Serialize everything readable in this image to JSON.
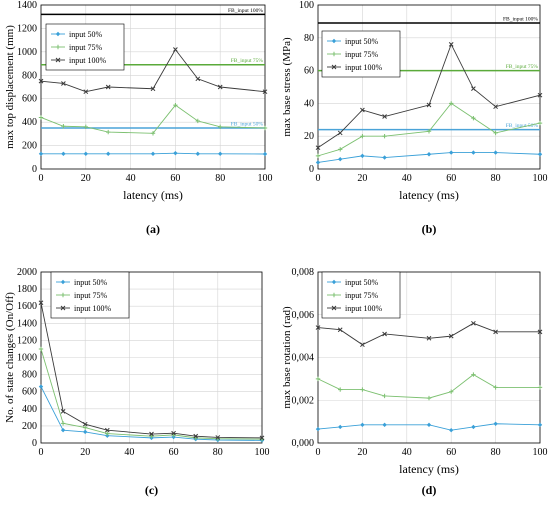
{
  "chart_data": [
    {
      "panel_label": "(a)",
      "type": "line",
      "xlabel": "latency (ms)",
      "ylabel": "max top displacement (mm)",
      "xlim": [
        0,
        100
      ],
      "ylim": [
        0,
        1400
      ],
      "xticks": [
        "0",
        "20",
        "40",
        "60",
        "80",
        "100"
      ],
      "yticks": [
        "0",
        "200",
        "400",
        "600",
        "800",
        "1000",
        "1200",
        "1400"
      ],
      "x": [
        0,
        10,
        20,
        30,
        50,
        60,
        70,
        80,
        100
      ],
      "series": [
        {
          "name": "input 50%",
          "values": [
            130,
            130,
            130,
            130,
            130,
            135,
            130,
            130,
            128
          ]
        },
        {
          "name": "input 75%",
          "values": [
            440,
            365,
            360,
            315,
            305,
            545,
            410,
            360,
            350
          ]
        },
        {
          "name": "input 100%",
          "values": [
            750,
            730,
            660,
            700,
            685,
            1020,
            770,
            700,
            660
          ]
        }
      ],
      "reference_lines": [
        {
          "label": "FB_input 100%",
          "value": 1320
        },
        {
          "label": "FB_input 75%",
          "value": 890
        },
        {
          "label": "FB_input 50%",
          "value": 350
        }
      ],
      "legend_position": "top-left"
    },
    {
      "panel_label": "(b)",
      "type": "line",
      "xlabel": "latency (ms)",
      "ylabel": "max base stress (MPa)",
      "xlim": [
        0,
        100
      ],
      "ylim": [
        0,
        100
      ],
      "xticks": [
        "0",
        "20",
        "40",
        "60",
        "80",
        "100"
      ],
      "yticks": [
        "0",
        "20",
        "40",
        "60",
        "80",
        "100"
      ],
      "x": [
        0,
        10,
        20,
        30,
        50,
        60,
        70,
        80,
        100
      ],
      "series": [
        {
          "name": "input 50%",
          "values": [
            4,
            6,
            8,
            7,
            9,
            10,
            10,
            10,
            9
          ]
        },
        {
          "name": "input 75%",
          "values": [
            8,
            12,
            20,
            20,
            23,
            40,
            31,
            22,
            28
          ]
        },
        {
          "name": "input 100%",
          "values": [
            13,
            22,
            36,
            32,
            39,
            76,
            49,
            38,
            45
          ]
        }
      ],
      "reference_lines": [
        {
          "label": "FB_input 100%",
          "value": 89
        },
        {
          "label": "FB_input 75%",
          "value": 60
        },
        {
          "label": "FB_input 50%",
          "value": 24
        }
      ],
      "legend_position": "top-left"
    },
    {
      "panel_label": "(c)",
      "type": "line",
      "xlabel": "",
      "ylabel": "No. of state changes (On/Off)",
      "xlim": [
        0,
        100
      ],
      "ylim": [
        0,
        2000
      ],
      "xticks": [
        "0",
        "20",
        "40",
        "60",
        "80",
        "100"
      ],
      "yticks": [
        "0",
        "200",
        "400",
        "600",
        "800",
        "1000",
        "1200",
        "1400",
        "1600",
        "1800",
        "2000"
      ],
      "x": [
        0,
        10,
        20,
        30,
        50,
        60,
        70,
        80,
        100
      ],
      "series": [
        {
          "name": "input 50%",
          "values": [
            660,
            150,
            130,
            85,
            60,
            70,
            45,
            35,
            30
          ]
        },
        {
          "name": "input 75%",
          "values": [
            1100,
            230,
            180,
            110,
            80,
            95,
            60,
            50,
            45
          ]
        },
        {
          "name": "input 100%",
          "values": [
            1640,
            370,
            220,
            150,
            105,
            115,
            80,
            65,
            60
          ]
        }
      ],
      "legend_position": "top-right"
    },
    {
      "panel_label": "(d)",
      "type": "line",
      "xlabel": "latency (ms)",
      "ylabel": "max base rotation (rad)",
      "xlim": [
        0,
        100
      ],
      "ylim": [
        0,
        0.008
      ],
      "xticks": [
        "0",
        "20",
        "40",
        "60",
        "80",
        "100"
      ],
      "yticks": [
        "0,000",
        "0,002",
        "0,004",
        "0,006",
        "0,008"
      ],
      "x": [
        0,
        10,
        20,
        30,
        50,
        60,
        70,
        80,
        100
      ],
      "series": [
        {
          "name": "input 50%",
          "values": [
            0.00065,
            0.00075,
            0.00085,
            0.00085,
            0.00085,
            0.0006,
            0.00075,
            0.0009,
            0.00085
          ]
        },
        {
          "name": "input 75%",
          "values": [
            0.003,
            0.0025,
            0.0025,
            0.0022,
            0.0021,
            0.0024,
            0.0032,
            0.0026,
            0.0026
          ]
        },
        {
          "name": "input 100%",
          "values": [
            0.0054,
            0.0053,
            0.0046,
            0.0051,
            0.0049,
            0.005,
            0.0056,
            0.0052,
            0.0052
          ]
        }
      ],
      "legend_position": "top-left"
    }
  ],
  "colors": {
    "input_50": "#3aa0d8",
    "input_75": "#7cc070",
    "input_100": "#3a3a3a",
    "fb_50": "#4aa3d8",
    "fb_75": "#5aaa3a",
    "fb_100": "#000000",
    "grid": "#d4d4d4"
  },
  "icons": {
    "input_50": "diamond-marker",
    "input_75": "plus-marker",
    "input_100": "x-marker"
  }
}
